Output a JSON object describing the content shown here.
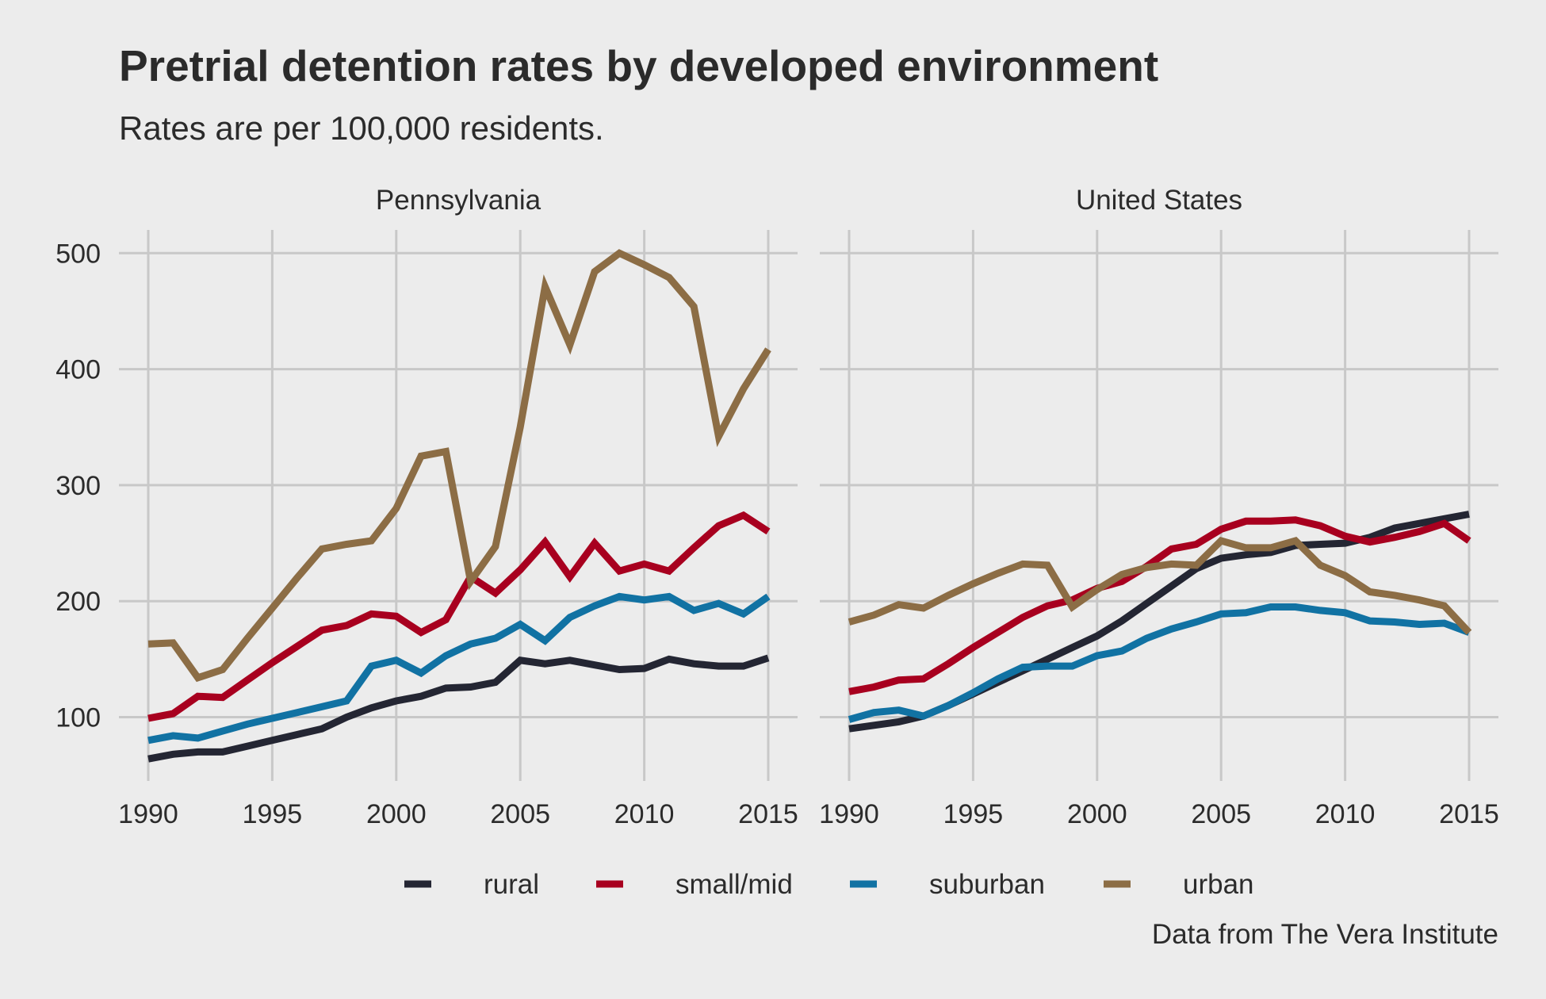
{
  "chart_data": {
    "type": "line",
    "title": "Pretrial detention rates by developed environment",
    "subtitle": "Rates are per 100,000 residents.",
    "caption": "Data from The Vera Institute",
    "xlabel": "",
    "ylabel": "",
    "xlim": [
      1990,
      2015
    ],
    "ylim": [
      45,
      520
    ],
    "x_ticks": [
      1990,
      1995,
      2000,
      2005,
      2010,
      2015
    ],
    "y_ticks": [
      100,
      200,
      300,
      400,
      500
    ],
    "grid": true,
    "legend_position": "bottom",
    "x": [
      1990,
      1991,
      1992,
      1993,
      1994,
      1995,
      1996,
      1997,
      1998,
      1999,
      2000,
      2001,
      2002,
      2003,
      2004,
      2005,
      2006,
      2007,
      2008,
      2009,
      2010,
      2011,
      2012,
      2013,
      2014,
      2015
    ],
    "series_meta": [
      {
        "name": "rural",
        "color": "#242633"
      },
      {
        "name": "small/mid",
        "color": "#a8001f"
      },
      {
        "name": "suburban",
        "color": "#1172a3"
      },
      {
        "name": "urban",
        "color": "#8c6d45"
      }
    ],
    "panels": [
      {
        "name": "Pennsylvania",
        "series": [
          {
            "name": "rural",
            "values": [
              64,
              68,
              70,
              70,
              75,
              80,
              85,
              90,
              100,
              108,
              114,
              118,
              125,
              126,
              130,
              149,
              146,
              149,
              145,
              141,
              142,
              150,
              146,
              144,
              144,
              151
            ]
          },
          {
            "name": "small/mid",
            "values": [
              99,
              103,
              118,
              117,
              132,
              147,
              161,
              175,
              179,
              189,
              187,
              173,
              184,
              221,
              207,
              227,
              251,
              221,
              250,
              226,
              232,
              226,
              246,
              265,
              274,
              260
            ]
          },
          {
            "name": "suburban",
            "values": [
              80,
              84,
              82,
              88,
              94,
              99,
              104,
              109,
              114,
              144,
              149,
              138,
              153,
              163,
              168,
              180,
              166,
              186,
              196,
              204,
              201,
              204,
              192,
              198,
              189,
              204
            ]
          },
          {
            "name": "urban",
            "values": [
              163,
              164,
              134,
              141,
              168,
              194,
              220,
              245,
              249,
              252,
              280,
              325,
              329,
              217,
              247,
              350,
              471,
              421,
              484,
              500,
              490,
              479,
              454,
              342,
              383,
              417
            ]
          }
        ]
      },
      {
        "name": "United States",
        "series": [
          {
            "name": "rural",
            "values": [
              90,
              93,
              96,
              101,
              110,
              120,
              130,
              140,
              150,
              160,
              170,
              183,
              198,
              213,
              228,
              237,
              240,
              242,
              248,
              249,
              250,
              255,
              263,
              267,
              271,
              275
            ]
          },
          {
            "name": "small/mid",
            "values": [
              122,
              126,
              132,
              133,
              146,
              160,
              173,
              186,
              196,
              201,
              211,
              217,
              230,
              245,
              249,
              262,
              269,
              269,
              270,
              265,
              256,
              251,
              255,
              260,
              267,
              252
            ]
          },
          {
            "name": "suburban",
            "values": [
              98,
              104,
              106,
              101,
              110,
              121,
              133,
              143,
              144,
              144,
              153,
              157,
              168,
              176,
              182,
              189,
              190,
              195,
              195,
              192,
              190,
              183,
              182,
              180,
              181,
              173
            ]
          },
          {
            "name": "urban",
            "values": [
              182,
              188,
              197,
              194,
              205,
              215,
              224,
              232,
              231,
              195,
              210,
              223,
              229,
              232,
              231,
              252,
              246,
              246,
              252,
              231,
              222,
              208,
              205,
              201,
              196,
              173
            ]
          }
        ]
      }
    ]
  }
}
